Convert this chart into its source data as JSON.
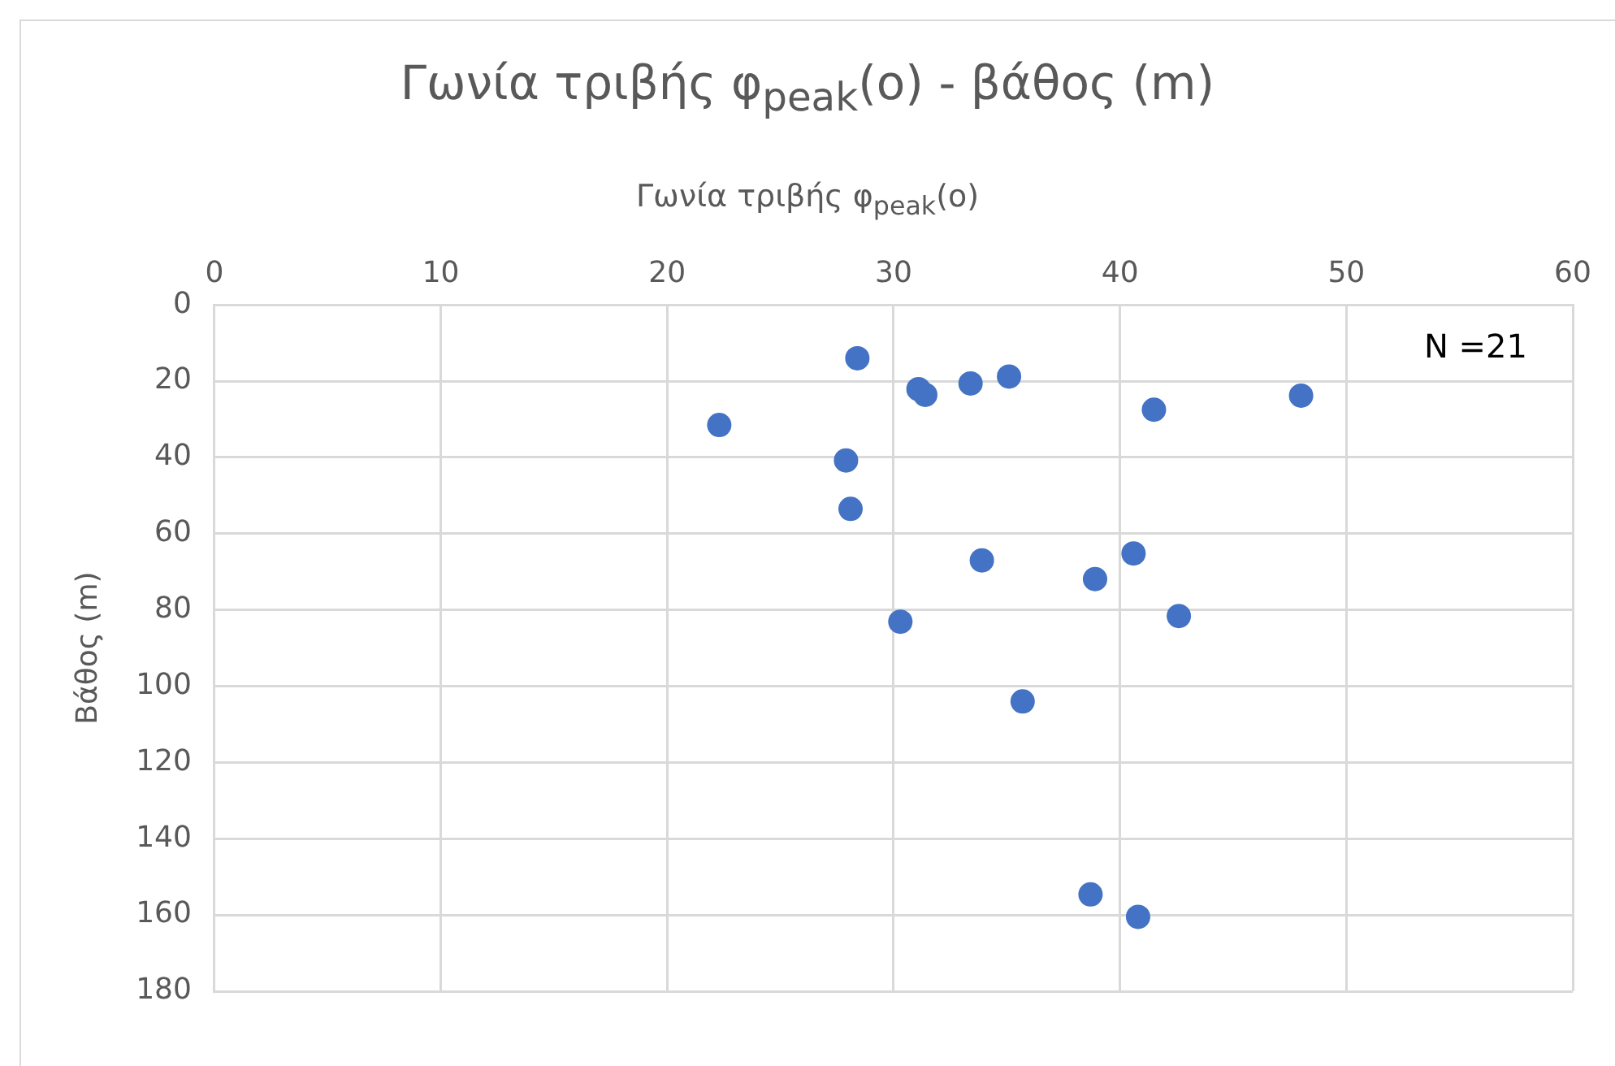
{
  "chart_data": {
    "type": "scatter",
    "title": "Γωνία τριβής φ$_{peak}$(o) - βάθος (m)",
    "xlabel": "Γωνία τριβής φ$_{peak}$(o)",
    "ylabel": "Βάθος (m)",
    "annotations": [
      "N =21"
    ],
    "xlim": [
      0,
      60
    ],
    "xticks": [
      0,
      10,
      20,
      30,
      40,
      50,
      60
    ],
    "ylim": [
      180,
      0
    ],
    "yticks": [
      0,
      20,
      40,
      60,
      80,
      100,
      120,
      140,
      160,
      180
    ],
    "grid": true,
    "legend": false,
    "marker": "circle",
    "series": [
      {
        "color": "#4472c4",
        "x": [
          28.4,
          31.1,
          31.4,
          33.4,
          35.1,
          41.5,
          48.0,
          22.3,
          27.9,
          28.1,
          33.9,
          38.9,
          40.6,
          42.6,
          30.3,
          35.7,
          38.7,
          40.8
        ],
        "values": [
          14.0,
          22.1,
          23.6,
          20.6,
          18.8,
          27.5,
          23.8,
          31.5,
          40.8,
          53.5,
          67.0,
          71.9,
          65.2,
          81.6,
          83.1,
          104.0,
          154.6,
          160.5
        ]
      }
    ]
  }
}
